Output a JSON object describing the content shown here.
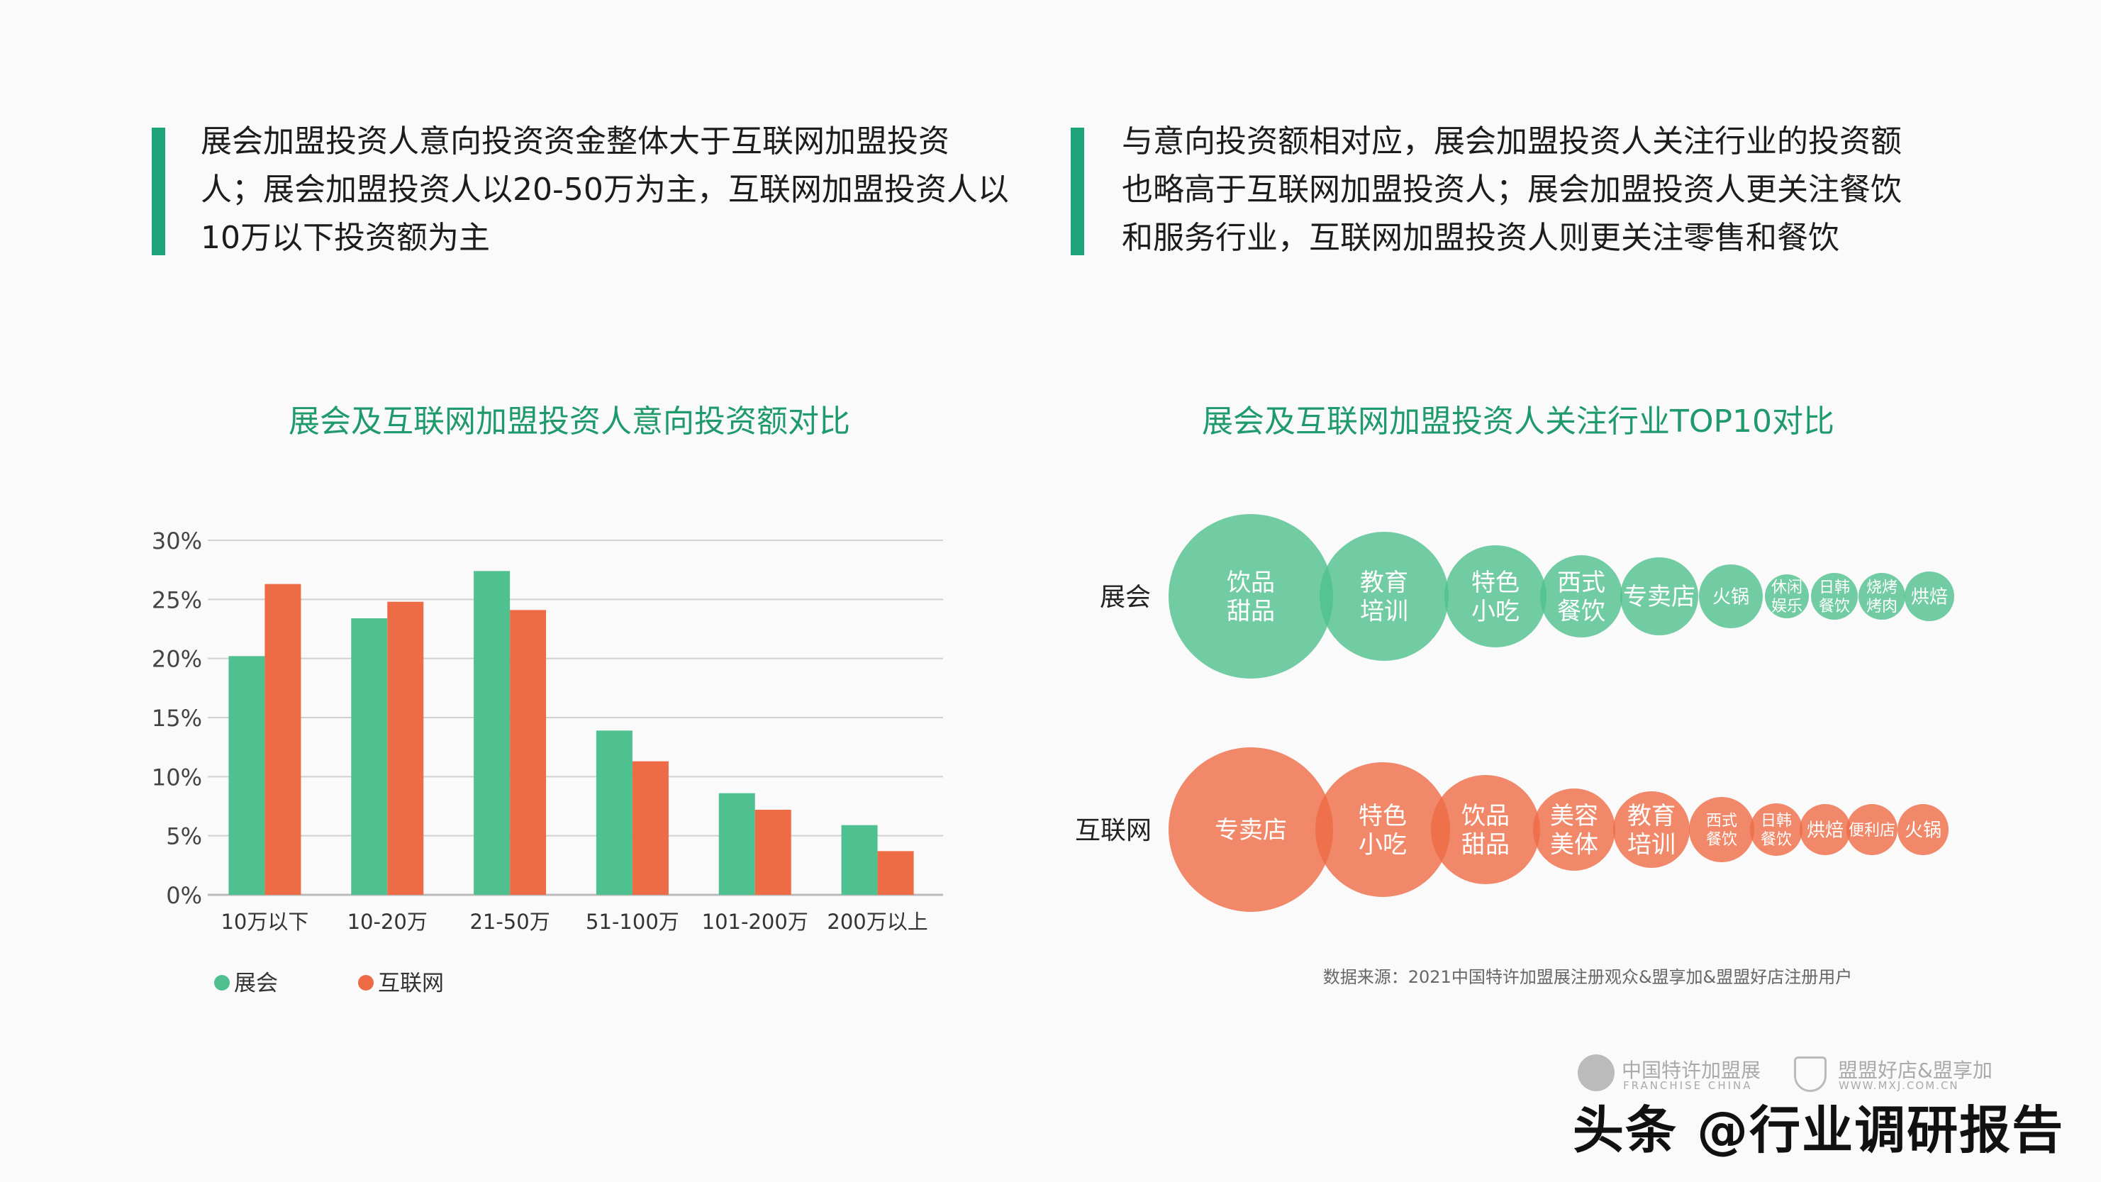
{
  "summaries": [
    {
      "lines": [
        "展会加盟投资人意向投资资金整体大于互联网加盟投资",
        "人；展会加盟投资人以20-50万为主，互联网加盟投资人以",
        "10万以下投资额为主"
      ]
    },
    {
      "lines": [
        "与意向投资额相对应，展会加盟投资人关注行业的投资额",
        "也略高于互联网加盟投资人；展会加盟投资人更关注餐饮",
        "和服务行业，互联网加盟投资人则更关注零售和餐饮"
      ]
    }
  ],
  "colors": {
    "exhibition": "#4fc08f",
    "internet": "#ee6c45",
    "title": "#1f9a6c",
    "accent": "#1ea37a"
  },
  "chart_data": [
    {
      "type": "bar",
      "title": "展会及互联网加盟投资人意向投资额对比",
      "categories": [
        "10万以下",
        "10-20万",
        "21-50万",
        "51-100万",
        "101-200万",
        "200万以上"
      ],
      "series": [
        {
          "name": "展会",
          "values": [
            20.2,
            23.4,
            27.4,
            13.9,
            8.6,
            5.9
          ]
        },
        {
          "name": "互联网",
          "values": [
            26.3,
            24.8,
            24.1,
            11.3,
            7.2,
            3.7
          ]
        }
      ],
      "yticks": [
        "0%",
        "5%",
        "10%",
        "15%",
        "20%",
        "25%",
        "30%"
      ],
      "ylim": [
        0,
        30
      ],
      "grid": true,
      "legend": "bottom-left"
    },
    {
      "type": "bubble",
      "title": "展会及互联网加盟投资人关注行业TOP10对比",
      "rows": [
        {
          "name": "展会",
          "items": [
            [
              "饮品",
              "甜品"
            ],
            [
              "教育",
              "培训"
            ],
            [
              "特色",
              "小吃"
            ],
            [
              "西式",
              "餐饮"
            ],
            [
              "专卖店"
            ],
            [
              "火锅"
            ],
            [
              "休闲",
              "娱乐"
            ],
            [
              "日韩",
              "餐饮"
            ],
            [
              "烧烤",
              "烤肉"
            ],
            [
              "烘焙"
            ]
          ]
        },
        {
          "name": "互联网",
          "items": [
            [
              "专卖店"
            ],
            [
              "特色",
              "小吃"
            ],
            [
              "饮品",
              "甜品"
            ],
            [
              "美容",
              "美体"
            ],
            [
              "教育",
              "培训"
            ],
            [
              "西式",
              "餐饮"
            ],
            [
              "日韩",
              "餐饮"
            ],
            [
              "烘焙"
            ],
            [
              "便利店"
            ],
            [
              "火锅"
            ]
          ]
        }
      ]
    }
  ],
  "source": "数据来源：2021中国特许加盟展注册观众&盟享加&盟盟好店注册用户",
  "logos": {
    "franchise_cn": "中国特许加盟展",
    "franchise_en": "FRANCHISE CHINA",
    "mxj_cn": "盟盟好店&盟享加",
    "mxj_en": "WWW.MXJ.COM.CN"
  },
  "watermark": "头条 @行业调研报告"
}
